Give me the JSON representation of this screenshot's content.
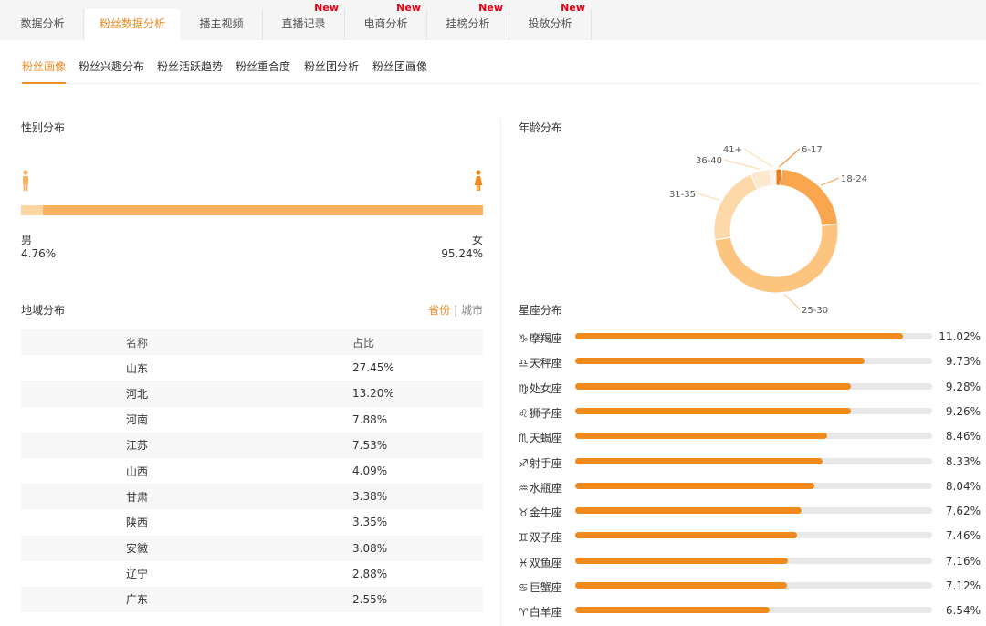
{
  "top_tabs": [
    {
      "label": "数据分析",
      "new": ""
    },
    {
      "label": "粉丝数据分析",
      "new": ""
    },
    {
      "label": "播主视频",
      "new": ""
    },
    {
      "label": "直播记录",
      "new": "New"
    },
    {
      "label": "电商分析",
      "new": "New"
    },
    {
      "label": "挂榜分析",
      "new": "New"
    },
    {
      "label": "投放分析",
      "new": "New"
    }
  ],
  "sub_tabs": [
    "粉丝画像",
    "粉丝兴趣分布",
    "粉丝活跃趋势",
    "粉丝重合度",
    "粉丝团分析",
    "粉丝团画像"
  ],
  "colors": {
    "accent": "#f08a24",
    "new_badge": "#e60012"
  },
  "gender": {
    "title": "性别分布",
    "male_label": "男",
    "male_value": "4.76%",
    "male_fraction": 0.0476,
    "female_label": "女",
    "female_value": "95.24%"
  },
  "region": {
    "title": "地域分布",
    "toggle_on": "省份",
    "toggle_sep": "|",
    "toggle_off": "城市",
    "headers": [
      "名称",
      "占比"
    ],
    "rows": [
      [
        "山东",
        "27.45%"
      ],
      [
        "河北",
        "13.20%"
      ],
      [
        "河南",
        "7.88%"
      ],
      [
        "江苏",
        "7.53%"
      ],
      [
        "山西",
        "4.09%"
      ],
      [
        "甘肃",
        "3.38%"
      ],
      [
        "陕西",
        "3.35%"
      ],
      [
        "安徽",
        "3.08%"
      ],
      [
        "辽宁",
        "2.88%"
      ],
      [
        "广东",
        "2.55%"
      ]
    ]
  },
  "age": {
    "title": "年龄分布"
  },
  "zodiac": {
    "title": "星座分布"
  },
  "chart_data": [
    {
      "type": "pie",
      "title": "年龄分布",
      "categories": [
        "6-17",
        "18-24",
        "25-30",
        "31-35",
        "36-40",
        "41+"
      ],
      "values": [
        1.5,
        21,
        48,
        20,
        5,
        1.5
      ],
      "colors": [
        "#f07d14",
        "#f9a64e",
        "#fcc47e",
        "#fdd8a8",
        "#fde9cf",
        "#fff4e6"
      ]
    },
    {
      "type": "bar",
      "title": "星座分布",
      "categories": [
        "摩羯座",
        "天秤座",
        "处女座",
        "狮子座",
        "天蝎座",
        "射手座",
        "水瓶座",
        "金牛座",
        "双子座",
        "双鱼座",
        "巨蟹座",
        "白羊座"
      ],
      "symbols": [
        "♑",
        "♎",
        "♍",
        "♌",
        "♏",
        "♐",
        "♒",
        "♉",
        "♊",
        "♓",
        "♋",
        "♈"
      ],
      "values": [
        11.02,
        9.73,
        9.28,
        9.26,
        8.46,
        8.33,
        8.04,
        7.62,
        7.46,
        7.16,
        7.12,
        6.54
      ],
      "labels": [
        "11.02%",
        "9.73%",
        "9.28%",
        "9.26%",
        "8.46%",
        "8.33%",
        "8.04%",
        "7.62%",
        "7.46%",
        "7.16%",
        "7.12%",
        "6.54%"
      ],
      "xlim": [
        0,
        12
      ]
    }
  ]
}
